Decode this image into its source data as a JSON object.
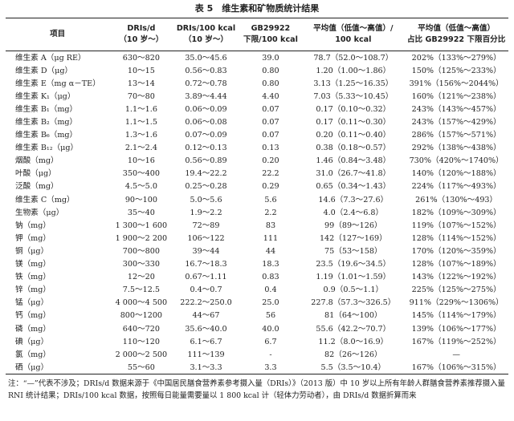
{
  "title": "表 5　维生素和矿物质统计结果",
  "table": {
    "header": [
      [
        "项目"
      ],
      [
        "DRIs/d",
        "（10 岁～）"
      ],
      [
        "DRIs/100 kcal",
        "（10 岁～）"
      ],
      [
        "GB29922",
        "下限/100 kcal"
      ],
      [
        "平均值（低值～高值）/",
        "100 kcal"
      ],
      [
        "平均值（低值～高值）",
        "占比 GB29922 下限百分比"
      ]
    ],
    "rows": [
      [
        "维生素 A（μg RE）",
        "630～820",
        "35.0～45.6",
        "39.0",
        "78.7（52.0～108.7）",
        "202%（133%～279%）"
      ],
      [
        "维生素 D（μg）",
        "10～15",
        "0.56～0.83",
        "0.80",
        "1.20（1.00～1.86）",
        "150%（125%～233%）"
      ],
      [
        "维生素 E（mg α－TE）",
        "13～14",
        "0.72～0.78",
        "0.80",
        "3.13（1.25～16.35）",
        "391%（156%～2044%）"
      ],
      [
        "维生素 K₁（μg）",
        "70～80",
        "3.89～4.44",
        "4.40",
        "7.03（5.33～10.45）",
        "160%（121%～238%）"
      ],
      [
        "维生素 B₁（mg）",
        "1.1～1.6",
        "0.06～0.09",
        "0.07",
        "0.17（0.10～0.32）",
        "243%（143%～457%）"
      ],
      [
        "维生素 B₂（mg）",
        "1.1～1.5",
        "0.06～0.08",
        "0.07",
        "0.17（0.11～0.30）",
        "243%（157%～429%）"
      ],
      [
        "维生素 B₆（mg）",
        "1.3～1.6",
        "0.07～0.09",
        "0.07",
        "0.20（0.11～0.40）",
        "286%（157%～571%）"
      ],
      [
        "维生素 B₁₂（μg）",
        "2.1～2.4",
        "0.12～0.13",
        "0.13",
        "0.38（0.18～0.57）",
        "292%（138%～438%）"
      ],
      [
        "烟酸（mg）",
        "10～16",
        "0.56～0.89",
        "0.20",
        "1.46（0.84～3.48）",
        "730%（420%～1740%）"
      ],
      [
        "叶酸（μg）",
        "350～400",
        "19.4～22.2",
        "22.2",
        "31.0（26.7～41.8）",
        "140%（120%～188%）"
      ],
      [
        "泛酸（mg）",
        "4.5～5.0",
        "0.25～0.28",
        "0.29",
        "0.65（0.34～1.43）",
        "224%（117%～493%）"
      ],
      [
        "维生素 C（mg）",
        "90～100",
        "5.0～5.6",
        "5.6",
        "14.6（7.3～27.6）",
        "261%（130%～493）"
      ],
      [
        "生物素（μg）",
        "35～40",
        "1.9～2.2",
        "2.2",
        "4.0（2.4～6.8）",
        "182%（109%～309%）"
      ],
      [
        "钠（mg）",
        "1 300～1 600",
        "72～89",
        "83",
        "99（89～126）",
        "119%（107%～152%）"
      ],
      [
        "钾（mg）",
        "1 900～2 200",
        "106～122",
        "111",
        "142（127～169）",
        "128%（114%～152%）"
      ],
      [
        "铜（μg）",
        "700～800",
        "39～44",
        "44",
        "75（53～158）",
        "170%（120%～359%）"
      ],
      [
        "镁（mg）",
        "300～330",
        "16.7～18.3",
        "18.3",
        "23.5（19.6～34.5）",
        "128%（107%～189%）"
      ],
      [
        "铁（mg）",
        "12～20",
        "0.67～1.11",
        "0.83",
        "1.19（1.01～1.59）",
        "143%（122%～192%）"
      ],
      [
        "锌（mg）",
        "7.5～12.5",
        "0.4～0.7",
        "0.4",
        "0.9（0.5～1.1）",
        "225%（125%～275%）"
      ],
      [
        "锰（μg）",
        "4 000～4 500",
        "222.2～250.0",
        "25.0",
        "227.8（57.3～326.5）",
        "911%（229%～1306%）"
      ],
      [
        "钙（mg）",
        "800～1200",
        "44～67",
        "56",
        "81（64～100）",
        "145%（114%～179%）"
      ],
      [
        "磷（mg）",
        "640～720",
        "35.6～40.0",
        "40.0",
        "55.6（42.2～70.7）",
        "139%（106%～177%）"
      ],
      [
        "碘（μg）",
        "110～120",
        "6.1～6.7",
        "6.7",
        "11.2（8.0～16.9）",
        "167%（119%～252%）"
      ],
      [
        "氯（mg）",
        "2 000～2 500",
        "111～139",
        "-",
        "82（26～126）",
        "—"
      ],
      [
        "硒（μg）",
        "55～60",
        "3.1～3.3",
        "3.3",
        "5.5（3.5～10.4）",
        "167%（106%～315%）"
      ]
    ]
  },
  "footnote": "注：“—”代表不涉及；DRIs/d 数据来源于《中国居民膳食营养素参考摄入量（DRIs）》（2013 版）中 10 岁以上所有年龄人群膳食营养素推荐摄入量 RNI 统计结果；DRIs/100 kcal 数据，按照每日能量需要量以 1 800 kcal 计（轻体力劳动者），由 DRIs/d 数据折算而来"
}
